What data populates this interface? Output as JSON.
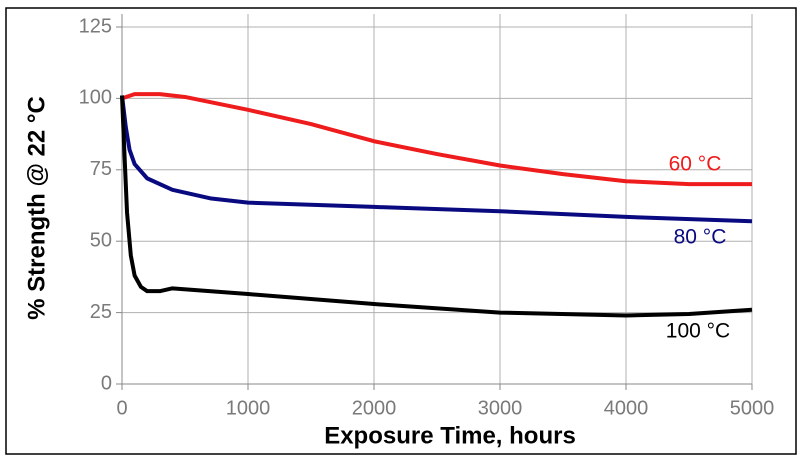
{
  "chart_data": {
    "type": "line",
    "x_label": "Exposure Time, hours",
    "y_label": "% Strength @ 22 °C",
    "xlim": [
      0,
      5000
    ],
    "xticks": [
      0,
      1000,
      2000,
      3000,
      4000,
      5000
    ],
    "ylim": [
      0,
      125
    ],
    "yticks": [
      0,
      25,
      50,
      75,
      100,
      125
    ],
    "grid": true,
    "series": [
      {
        "name": "60 °C",
        "color": "#ee1c1c",
        "x": [
          0,
          100,
          300,
          500,
          1000,
          1500,
          2000,
          2500,
          3000,
          3500,
          4000,
          4500,
          5000
        ],
        "values": [
          100,
          101.5,
          101.5,
          100.5,
          96,
          91,
          85,
          80.5,
          76.5,
          73.5,
          71,
          70,
          70
        ]
      },
      {
        "name": "80 °C",
        "color": "#0a0a80",
        "x": [
          0,
          30,
          60,
          100,
          200,
          400,
          700,
          1000,
          2000,
          3000,
          4000,
          5000
        ],
        "values": [
          101,
          90,
          82,
          77,
          72,
          68,
          65,
          63.5,
          62,
          60.5,
          58.5,
          57
        ]
      },
      {
        "name": "100 °C",
        "color": "#000000",
        "x": [
          0,
          20,
          40,
          70,
          100,
          150,
          200,
          300,
          400,
          1000,
          2000,
          3000,
          4000,
          4500,
          5000
        ],
        "values": [
          101,
          80,
          60,
          45,
          38,
          34,
          32.5,
          32.5,
          33.5,
          31.5,
          28,
          25,
          24,
          24.5,
          26
        ]
      }
    ]
  }
}
